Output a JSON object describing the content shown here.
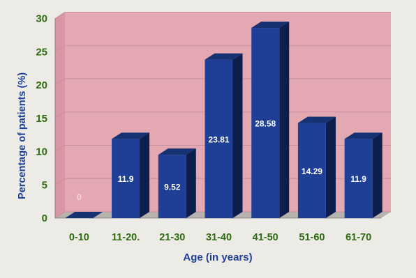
{
  "chart_data": {
    "type": "bar",
    "title": "",
    "xlabel": "Age (in years)",
    "ylabel": "Percentage of patients (%)",
    "categories": [
      "0-10",
      "11-20.",
      "21-30",
      "31-40",
      "41-50",
      "51-60",
      "61-70"
    ],
    "values": [
      0,
      11.9,
      9.52,
      23.81,
      28.58,
      14.29,
      11.9
    ],
    "data_labels": [
      "0",
      "11.9",
      "9.52",
      "23.81",
      "28.58",
      "14.29",
      "11.9"
    ],
    "yticks": [
      "0",
      "5",
      "10",
      "15",
      "20",
      "25",
      "30"
    ],
    "ylim": [
      0,
      30
    ],
    "grid": true,
    "legend": "none",
    "colors": {
      "bar_front": "#1f3f96",
      "bar_top": "#173272",
      "bar_side": "#0d1d4c",
      "back_wall": "#e3a8b2",
      "floor": "#b7b3ae",
      "grid": "#c68f9e",
      "axis_text": "#2e6b10",
      "data_label": "#ffffff",
      "zero_label": "#f2d8de"
    }
  }
}
